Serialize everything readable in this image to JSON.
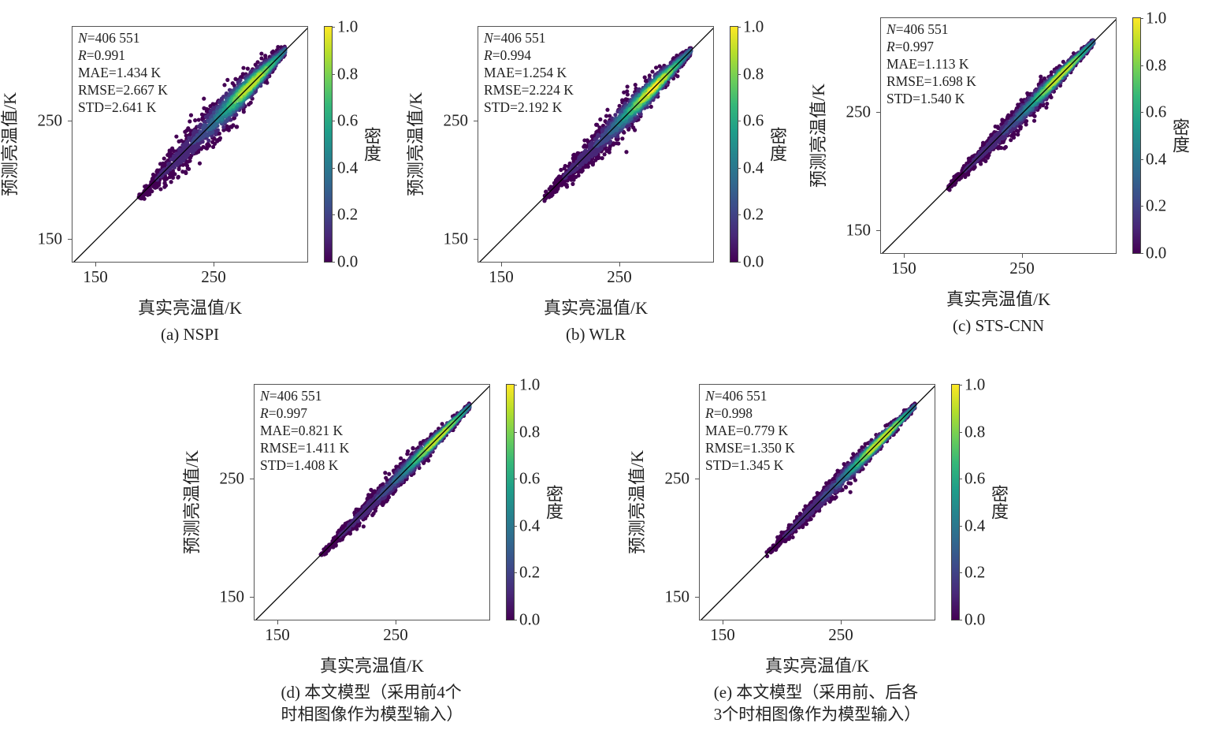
{
  "colors": {
    "viridis": [
      "#440154",
      "#482878",
      "#3e4989",
      "#31688e",
      "#26828e",
      "#1f9e89",
      "#35b779",
      "#6ece58",
      "#b5de2b",
      "#fde725"
    ],
    "line": "#000000"
  },
  "chart_data": [
    {
      "type": "scatter",
      "title": "(a) NSPI",
      "caption": [
        "(a) NSPI"
      ],
      "xlabel": "真实亮温值/K",
      "ylabel": "预测亮温值/K",
      "colorbar_label": "密度",
      "xlim": [
        130,
        330
      ],
      "ylim": [
        130,
        330
      ],
      "xticks": [
        "150",
        "250"
      ],
      "yticks": [
        "150",
        "250"
      ],
      "cticks": [
        "0.0",
        "0.2",
        "0.4",
        "0.6",
        "0.8",
        "1.0"
      ],
      "stats": {
        "N": "406 551",
        "R": "0.991",
        "MAE": "1.434 K",
        "RMSE": "2.667 K",
        "STD": "2.641 K"
      },
      "point_range": [
        186,
        310
      ],
      "peak": 287
    },
    {
      "type": "scatter",
      "title": "(b) WLR",
      "caption": [
        "(b) WLR"
      ],
      "xlabel": "真实亮温值/K",
      "ylabel": "预测亮温值/K",
      "colorbar_label": "密度",
      "xlim": [
        130,
        330
      ],
      "ylim": [
        130,
        330
      ],
      "xticks": [
        "150",
        "250"
      ],
      "yticks": [
        "150",
        "250"
      ],
      "cticks": [
        "0.0",
        "0.2",
        "0.4",
        "0.6",
        "0.8",
        "1.0"
      ],
      "stats": {
        "N": "406 551",
        "R": "0.994",
        "MAE": "1.254 K",
        "RMSE": "2.224 K",
        "STD": "2.192 K"
      },
      "point_range": [
        186,
        310
      ],
      "peak": 283
    },
    {
      "type": "scatter",
      "title": "(c) STS-CNN",
      "caption": [
        "(c) STS-CNN"
      ],
      "xlabel": "真实亮温值/K",
      "ylabel": "预测亮温值/K",
      "colorbar_label": "密度",
      "xlim": [
        130,
        330
      ],
      "ylim": [
        130,
        330
      ],
      "xticks": [
        "150",
        "250"
      ],
      "yticks": [
        "150",
        "250"
      ],
      "cticks": [
        "0.0",
        "0.2",
        "0.4",
        "0.6",
        "0.8",
        "1.0"
      ],
      "stats": {
        "N": "406 551",
        "R": "0.997",
        "MAE": "1.113 K",
        "RMSE": "1.698 K",
        "STD": "1.540 K"
      },
      "point_range": [
        186,
        310
      ],
      "peak": 287
    },
    {
      "type": "scatter",
      "title": "(d) 本文模型（采用前4个时相图像作为模型输入）",
      "caption": [
        "(d) 本文模型（采用前4个",
        "时相图像作为模型输入）"
      ],
      "xlabel": "真实亮温值/K",
      "ylabel": "预测亮温值/K",
      "colorbar_label": "密度",
      "xlim": [
        130,
        330
      ],
      "ylim": [
        130,
        330
      ],
      "xticks": [
        "150",
        "250"
      ],
      "yticks": [
        "150",
        "250"
      ],
      "cticks": [
        "0.0",
        "0.2",
        "0.4",
        "0.6",
        "0.8",
        "1.0"
      ],
      "stats": {
        "N": "406 551",
        "R": "0.997",
        "MAE": "0.821 K",
        "RMSE": "1.411 K",
        "STD": "1.408 K"
      },
      "point_range": [
        186,
        312
      ],
      "peak": 290
    },
    {
      "type": "scatter",
      "title": "(e) 本文模型（采用前、后各3个时相图像作为模型输入）",
      "caption": [
        "(e) 本文模型（采用前、后各",
        "3个时相图像作为模型输入）"
      ],
      "xlabel": "真实亮温值/K",
      "ylabel": "预测亮温值/K",
      "colorbar_label": "密度",
      "xlim": [
        130,
        330
      ],
      "ylim": [
        130,
        330
      ],
      "xticks": [
        "150",
        "250"
      ],
      "yticks": [
        "150",
        "250"
      ],
      "cticks": [
        "0.0",
        "0.2",
        "0.4",
        "0.6",
        "0.8",
        "1.0"
      ],
      "stats": {
        "N": "406 551",
        "R": "0.998",
        "MAE": "0.779 K",
        "RMSE": "1.350 K",
        "STD": "1.345 K"
      },
      "point_range": [
        186,
        312
      ],
      "peak": 288
    }
  ]
}
